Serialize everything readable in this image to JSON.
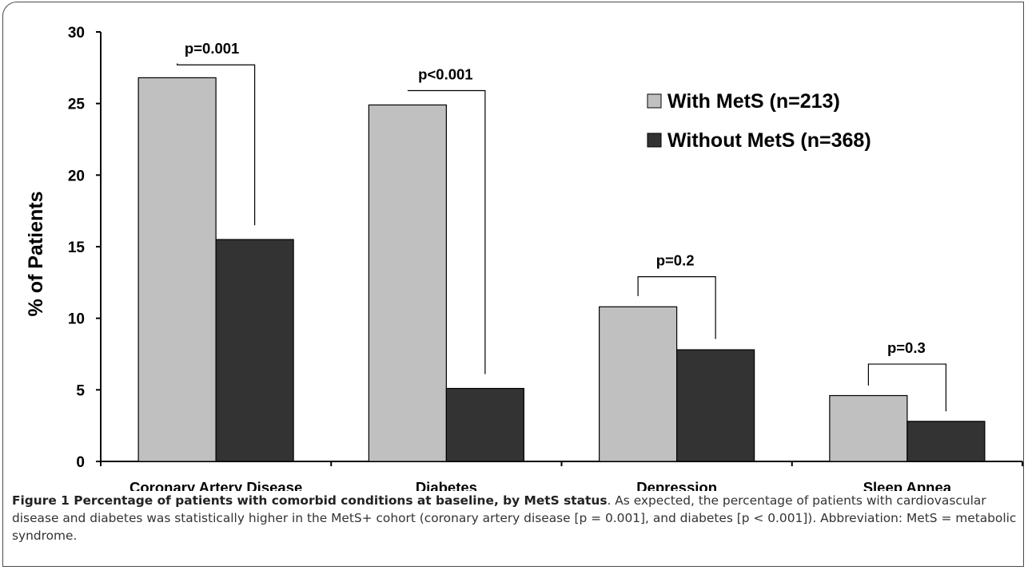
{
  "chart_data": {
    "type": "bar",
    "categories": [
      "Coronary Artery Disease",
      "Diabetes",
      "Depression",
      "Sleep Apnea"
    ],
    "series": [
      {
        "name": "With MetS (n=213)",
        "values": [
          26.8,
          24.9,
          10.8,
          4.6
        ],
        "color": "#c0c0c0"
      },
      {
        "name": "Without MetS (n=368)",
        "values": [
          15.5,
          5.1,
          7.8,
          2.8
        ],
        "color": "#333333"
      }
    ],
    "ylabel": "% of Patients",
    "ylim": [
      0,
      30
    ],
    "yticks": [
      0,
      5,
      10,
      15,
      20,
      25,
      30
    ],
    "annotations": [
      "p=0.001",
      "p<0.001",
      "p=0.2",
      "p=0.3"
    ],
    "legend_position": "top-right",
    "grid": false
  },
  "caption": {
    "lead": "Figure 1 Percentage of patients with comorbid conditions at baseline, by MetS status",
    "text": ". As expected, the percentage of patients with cardiovascular disease and diabetes was statistically higher in the MetS+ cohort (coronary artery disease [p = 0.001], and diabetes [p < 0.001]). Abbreviation: MetS = metabolic syndrome."
  }
}
